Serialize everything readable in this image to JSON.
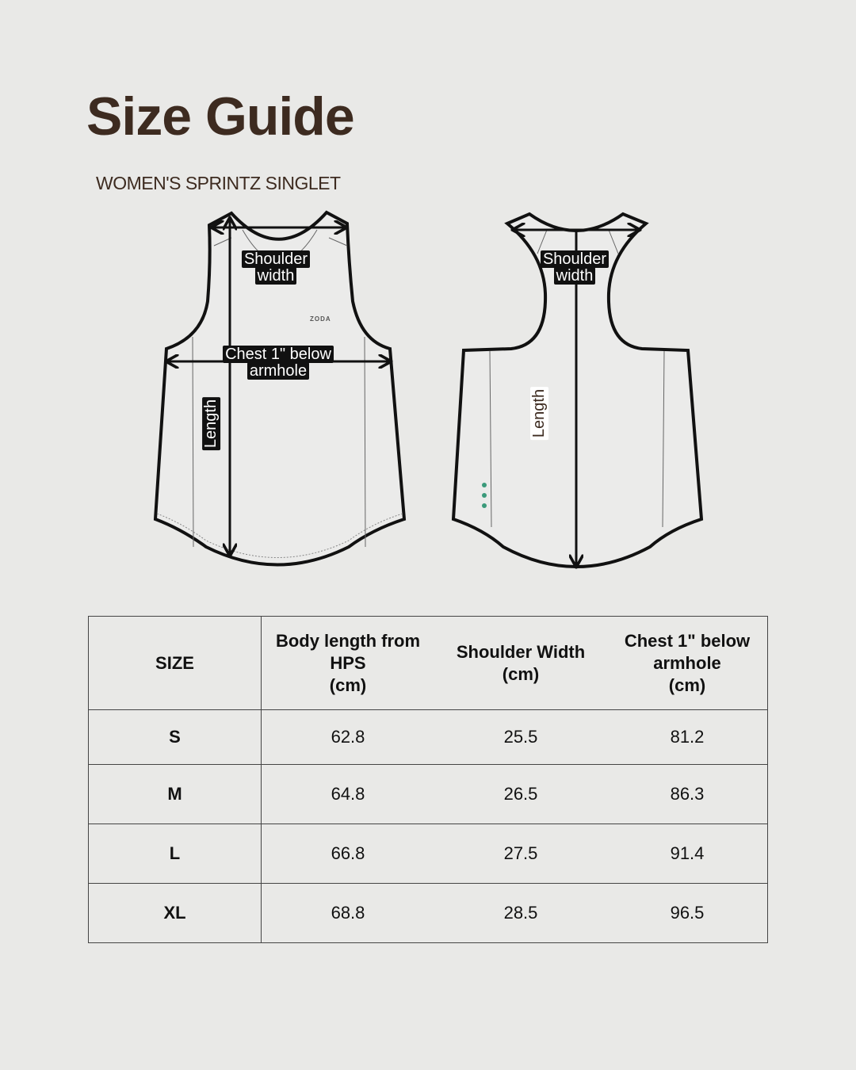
{
  "header": {
    "title": "Size Guide",
    "subtitle": "WOMEN'S SPRINTZ SINGLET"
  },
  "diagram": {
    "front": {
      "shoulder_label": [
        "Shoulder",
        "width"
      ],
      "chest_label": [
        "Chest 1\" below",
        "armhole"
      ],
      "length_label": "Length",
      "logo": "ZODA"
    },
    "back": {
      "shoulder_label": [
        "Shoulder",
        "width"
      ],
      "length_label": "Length"
    }
  },
  "table": {
    "headers": [
      [
        "SIZE"
      ],
      [
        "Body length from",
        "HPS",
        "(cm)"
      ],
      [
        "Shoulder Width",
        "(cm)"
      ],
      [
        "Chest 1\" below",
        "armhole",
        "(cm)"
      ]
    ],
    "rows": [
      [
        "S",
        "62.8",
        "25.5",
        "81.2"
      ],
      [
        "M",
        "64.8",
        "26.5",
        "86.3"
      ],
      [
        "L",
        "66.8",
        "27.5",
        "91.4"
      ],
      [
        "XL",
        "68.8",
        "28.5",
        "96.5"
      ]
    ]
  },
  "colors": {
    "title": "#3d2b20",
    "background": "#e9e9e7",
    "accent_dots": "#3a9a7a"
  }
}
